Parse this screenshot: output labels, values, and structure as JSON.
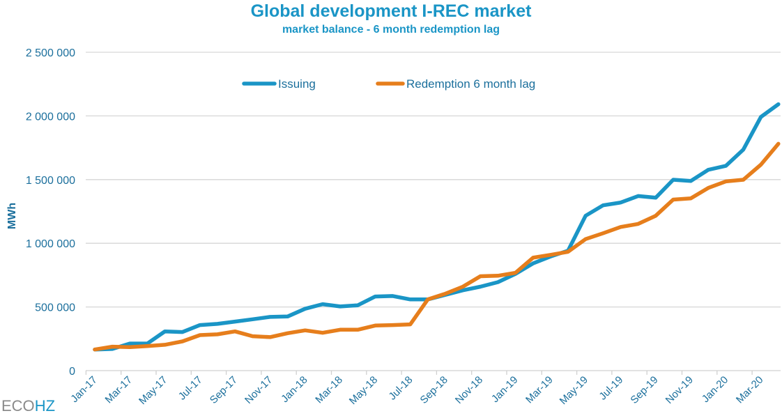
{
  "chart_data": {
    "type": "line",
    "title": "Global development I-REC market",
    "subtitle": "market balance - 6 month redemption lag",
    "ylabel": "MWh",
    "xlabel": "",
    "ylim": [
      0,
      2500000
    ],
    "yticks": [
      0,
      500000,
      1000000,
      1500000,
      2000000,
      2500000
    ],
    "ytick_labels": [
      "0",
      "500 000",
      "1 000 000",
      "1 500 000",
      "2 000 000",
      "2 500 000"
    ],
    "grid": true,
    "legend_position": "top-center",
    "x": [
      "Jan-17",
      "Feb-17",
      "Mar-17",
      "Apr-17",
      "May-17",
      "Jun-17",
      "Jul-17",
      "Aug-17",
      "Sep-17",
      "Oct-17",
      "Nov-17",
      "Dec-17",
      "Jan-18",
      "Feb-18",
      "Mar-18",
      "Apr-18",
      "May-18",
      "Jun-18",
      "Jul-18",
      "Aug-18",
      "Sep-18",
      "Oct-18",
      "Nov-18",
      "Dec-18",
      "Jan-19",
      "Feb-19",
      "Mar-19",
      "Apr-19",
      "May-19",
      "Jun-19",
      "Jul-19",
      "Aug-19",
      "Sep-19",
      "Oct-19",
      "Nov-19",
      "Dec-19",
      "Jan-20",
      "Feb-20",
      "Mar-20",
      "Apr-20"
    ],
    "xtick_labels": [
      "Jan-17",
      "Mar-17",
      "May-17",
      "Jul-17",
      "Sep-17",
      "Nov-17",
      "Jan-18",
      "Mar-18",
      "May-18",
      "Jul-18",
      "Sep-18",
      "Nov-18",
      "Jan-19",
      "Mar-19",
      "May-19",
      "Jul-19",
      "Sep-19",
      "Nov-19",
      "Jan-20",
      "Mar-20"
    ],
    "series": [
      {
        "name": "Issuing",
        "color": "#1a95c6",
        "values": [
          166000,
          170000,
          213000,
          213000,
          308000,
          303000,
          358000,
          367000,
          385000,
          403000,
          422000,
          425000,
          486000,
          522000,
          504000,
          513000,
          582000,
          586000,
          559000,
          559000,
          595000,
          631000,
          659000,
          695000,
          760000,
          842000,
          896000,
          942000,
          1216000,
          1298000,
          1320000,
          1371000,
          1358000,
          1499000,
          1489000,
          1577000,
          1608000,
          1736000,
          1992000,
          2092000
        ]
      },
      {
        "name": "Redemption 6 month lag",
        "color": "#e67e1c",
        "values": [
          166000,
          188000,
          185000,
          193000,
          203000,
          230000,
          279000,
          285000,
          308000,
          270000,
          263000,
          294000,
          316000,
          297000,
          321000,
          321000,
          354000,
          358000,
          363000,
          559000,
          604000,
          659000,
          741000,
          745000,
          768000,
          887000,
          909000,
          933000,
          1033000,
          1079000,
          1128000,
          1152000,
          1216000,
          1343000,
          1353000,
          1435000,
          1486000,
          1499000,
          1617000,
          1781000
        ]
      }
    ]
  },
  "logo": {
    "text_a": "ECO",
    "text_b": "HZ"
  }
}
